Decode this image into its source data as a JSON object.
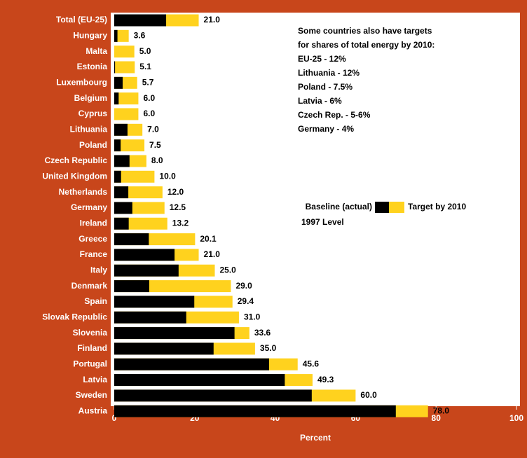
{
  "chart_data": {
    "type": "overlay-bar",
    "categories": [
      "Total (EU-25)",
      "Hungary",
      "Malta",
      "Estonia",
      "Luxembourg",
      "Belgium",
      "Cyprus",
      "Lithuania",
      "Poland",
      "Czech Republic",
      "United Kingdom",
      "Netherlands",
      "Germany",
      "Ireland",
      "Greece",
      "France",
      "Italy",
      "Denmark",
      "Spain",
      "Slovak Republic",
      "Slovenia",
      "Finland",
      "Portugal",
      "Latvia",
      "Sweden",
      "Austria"
    ],
    "series": [
      {
        "name": "Baseline (actual)",
        "legend_note": "1997 Level",
        "color": "#000000",
        "values": [
          12.9,
          0.8,
          0,
          0.2,
          2.1,
          1.1,
          0,
          3.3,
          1.6,
          3.8,
          1.7,
          3.5,
          4.5,
          3.6,
          8.6,
          15.0,
          16.0,
          8.7,
          19.9,
          17.9,
          29.9,
          24.7,
          38.5,
          42.4,
          49.1,
          70.0
        ]
      },
      {
        "name": "Target by 2010",
        "color": "#ffd21e",
        "values": [
          21.0,
          3.6,
          5.0,
          5.1,
          5.7,
          6.0,
          6.0,
          7.0,
          7.5,
          8.0,
          10.0,
          12.0,
          12.5,
          13.2,
          20.1,
          21.0,
          25.0,
          29.0,
          29.4,
          31.0,
          33.6,
          35.0,
          45.6,
          49.3,
          60.0,
          78.0
        ],
        "value_labels": [
          "21.0",
          "3.6",
          "5.0",
          "5.1",
          "5.7",
          "6.0",
          "6.0",
          "7.0",
          "7.5",
          "8.0",
          "10.0",
          "12.0",
          "12.5",
          "13.2",
          "20.1",
          "21.0",
          "25.0",
          "29.0",
          "29.4",
          "31.0",
          "33.6",
          "35.0",
          "45.6",
          "49.3",
          "60.0",
          "78.0"
        ]
      }
    ],
    "xlabel": "Percent",
    "xlim": [
      0,
      100
    ],
    "xticks": [
      0,
      20,
      40,
      60,
      80,
      100
    ],
    "annotation": [
      "Some countries also have targets",
      "for shares of total energy by 2010:",
      "EU-25 - 12%",
      "Lithuania - 12%",
      "Poland - 7.5%",
      "Latvia - 6%",
      "Czech Rep. - 5-6%",
      "Germany - 4%"
    ]
  }
}
